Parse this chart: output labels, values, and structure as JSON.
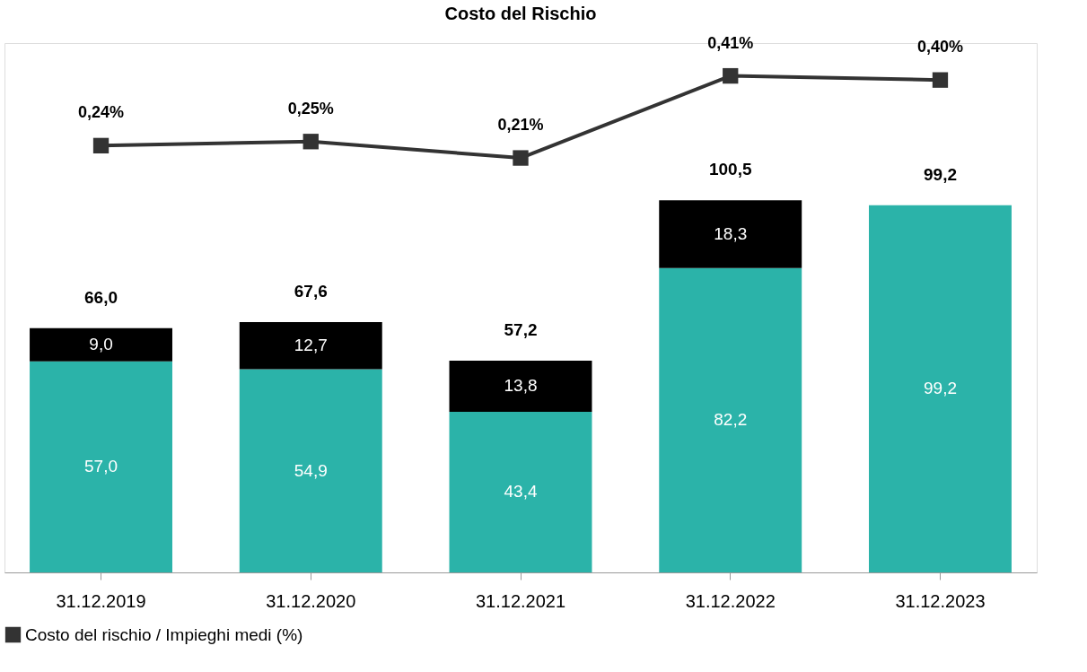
{
  "chart_data": {
    "type": "bar",
    "title": "Costo del Rischio",
    "categories": [
      "31.12.2019",
      "31.12.2020",
      "31.12.2021",
      "31.12.2022",
      "31.12.2023"
    ],
    "stacked": true,
    "ylim": [
      0,
      143
    ],
    "y2lim": [
      -0.8,
      0.49
    ],
    "tick_labels": "x",
    "legend": "bottom",
    "marker": "square",
    "series": [
      {
        "color": "#2bb3a9",
        "values": [
          57.0,
          54.9,
          43.4,
          82.2,
          99.2
        ],
        "value_labels": [
          "57,0",
          "54,9",
          "43,4",
          "82,2",
          "99,2"
        ]
      },
      {
        "color": "#000000",
        "values": [
          9.0,
          12.7,
          13.8,
          18.3,
          null
        ],
        "value_labels": [
          "9,0",
          "12,7",
          "13,8",
          "18,3",
          null
        ]
      },
      {
        "name": "Costo del rischio / Impieghi medi (%)",
        "type": "line",
        "axis": "y2",
        "color": "#333333",
        "values": [
          0.24,
          0.25,
          0.21,
          0.41,
          0.4
        ],
        "value_labels": [
          "0,24%",
          "0,25%",
          "0,21%",
          "0,41%",
          "0,40%"
        ]
      }
    ],
    "totals": [
      "66,0",
      "67,6",
      "57,2",
      "100,5",
      "99,2"
    ]
  }
}
